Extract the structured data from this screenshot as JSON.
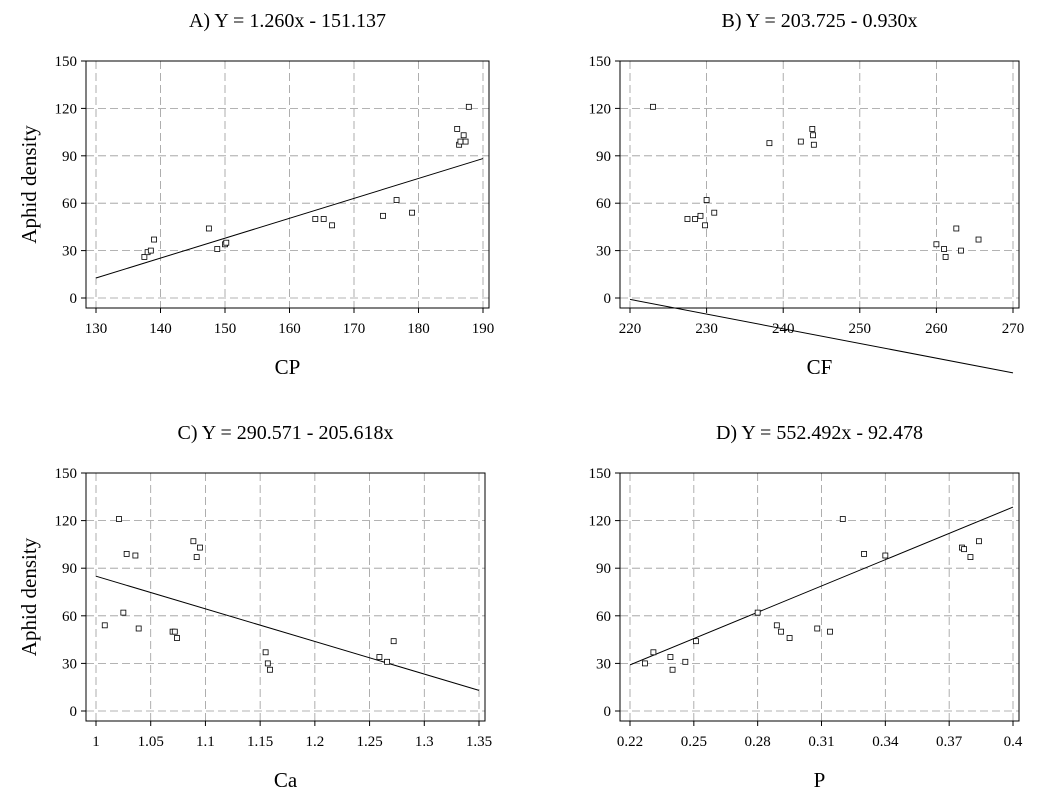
{
  "chart_data": [
    {
      "type": "scatter",
      "panel": "A",
      "title": "A) Y = 1.260x - 151.137",
      "xlabel": "CP",
      "ylabel": "Aphid density",
      "xlim": [
        130,
        190
      ],
      "ylim": [
        0,
        150
      ],
      "xticks": [
        130,
        140,
        150,
        160,
        170,
        180,
        190
      ],
      "xtick_labels": [
        "130",
        "140",
        "150",
        "160",
        "170",
        "180",
        "190"
      ],
      "yticks": [
        0,
        30,
        60,
        90,
        120,
        150
      ],
      "ytick_labels": [
        "0",
        "30",
        "60",
        "90",
        "120",
        "150"
      ],
      "grid": true,
      "points": [
        {
          "x": 137.5,
          "y": 26
        },
        {
          "x": 138.0,
          "y": 29
        },
        {
          "x": 138.5,
          "y": 30
        },
        {
          "x": 139.0,
          "y": 37
        },
        {
          "x": 147.5,
          "y": 44
        },
        {
          "x": 148.8,
          "y": 31
        },
        {
          "x": 150.0,
          "y": 34
        },
        {
          "x": 150.2,
          "y": 35
        },
        {
          "x": 164.0,
          "y": 50
        },
        {
          "x": 165.3,
          "y": 50
        },
        {
          "x": 166.6,
          "y": 46
        },
        {
          "x": 174.5,
          "y": 52
        },
        {
          "x": 176.6,
          "y": 62
        },
        {
          "x": 179.0,
          "y": 54
        },
        {
          "x": 186.0,
          "y": 107
        },
        {
          "x": 186.3,
          "y": 97
        },
        {
          "x": 186.5,
          "y": 99
        },
        {
          "x": 187.0,
          "y": 103
        },
        {
          "x": 187.3,
          "y": 99
        },
        {
          "x": 187.8,
          "y": 121
        }
      ],
      "fit": {
        "slope": 1.26,
        "intercept": -151.137,
        "x_range": [
          130,
          190
        ]
      }
    },
    {
      "type": "scatter",
      "panel": "B",
      "title": "B) Y = 203.725 - 0.930x",
      "xlabel": "CF",
      "ylabel": "",
      "xlim": [
        220,
        270
      ],
      "ylim": [
        0,
        150
      ],
      "xticks": [
        220,
        230,
        240,
        250,
        260,
        270
      ],
      "xtick_labels": [
        "220",
        "230",
        "240",
        "250",
        "260",
        "270"
      ],
      "yticks": [
        0,
        30,
        60,
        90,
        120,
        150
      ],
      "ytick_labels": [
        "0",
        "30",
        "60",
        "90",
        "120",
        "150"
      ],
      "grid": true,
      "points": [
        {
          "x": 223.0,
          "y": 121
        },
        {
          "x": 227.5,
          "y": 50
        },
        {
          "x": 228.5,
          "y": 50
        },
        {
          "x": 229.2,
          "y": 52
        },
        {
          "x": 229.8,
          "y": 46
        },
        {
          "x": 230.0,
          "y": 62
        },
        {
          "x": 231.0,
          "y": 54
        },
        {
          "x": 238.2,
          "y": 98
        },
        {
          "x": 242.3,
          "y": 99
        },
        {
          "x": 243.8,
          "y": 107
        },
        {
          "x": 243.9,
          "y": 103
        },
        {
          "x": 244.0,
          "y": 97
        },
        {
          "x": 260.0,
          "y": 34
        },
        {
          "x": 261.0,
          "y": 31
        },
        {
          "x": 261.2,
          "y": 26
        },
        {
          "x": 262.6,
          "y": 44
        },
        {
          "x": 263.2,
          "y": 30
        },
        {
          "x": 265.5,
          "y": 37
        }
      ],
      "fit": {
        "slope": -0.93,
        "intercept": 203.725,
        "x_range": [
          220,
          270
        ]
      }
    },
    {
      "type": "scatter",
      "panel": "C",
      "title": "C) Y = 290.571 - 205.618x",
      "xlabel": "Ca",
      "ylabel": "Aphid density",
      "xlim": [
        1.0,
        1.35
      ],
      "ylim": [
        0,
        150
      ],
      "xticks": [
        1.0,
        1.05,
        1.1,
        1.15,
        1.2,
        1.25,
        1.3,
        1.35
      ],
      "xtick_labels": [
        "1",
        "1.05",
        "1.1",
        "1.15",
        "1.2",
        "1.25",
        "1.3",
        "1.35"
      ],
      "yticks": [
        0,
        30,
        60,
        90,
        120,
        150
      ],
      "ytick_labels": [
        "0",
        "30",
        "60",
        "90",
        "120",
        "150"
      ],
      "grid": true,
      "points": [
        {
          "x": 1.008,
          "y": 54
        },
        {
          "x": 1.021,
          "y": 121
        },
        {
          "x": 1.025,
          "y": 62
        },
        {
          "x": 1.028,
          "y": 99
        },
        {
          "x": 1.036,
          "y": 98
        },
        {
          "x": 1.039,
          "y": 52
        },
        {
          "x": 1.07,
          "y": 50
        },
        {
          "x": 1.072,
          "y": 50
        },
        {
          "x": 1.074,
          "y": 46
        },
        {
          "x": 1.089,
          "y": 107
        },
        {
          "x": 1.092,
          "y": 97
        },
        {
          "x": 1.095,
          "y": 103
        },
        {
          "x": 1.155,
          "y": 37
        },
        {
          "x": 1.157,
          "y": 30
        },
        {
          "x": 1.159,
          "y": 26
        },
        {
          "x": 1.259,
          "y": 34
        },
        {
          "x": 1.266,
          "y": 31
        },
        {
          "x": 1.272,
          "y": 44
        }
      ],
      "fit": {
        "slope": -205.618,
        "intercept": 290.571,
        "x_range": [
          1.0,
          1.35
        ]
      }
    },
    {
      "type": "scatter",
      "panel": "D",
      "title": "D) Y = 552.492x - 92.478",
      "xlabel": "P",
      "ylabel": "",
      "xlim": [
        0.22,
        0.4
      ],
      "ylim": [
        0,
        150
      ],
      "xticks": [
        0.22,
        0.25,
        0.28,
        0.31,
        0.34,
        0.37,
        0.4
      ],
      "xtick_labels": [
        "0.22",
        "0.25",
        "0.28",
        "0.31",
        "0.34",
        "0.37",
        "0.4"
      ],
      "yticks": [
        0,
        30,
        60,
        90,
        120,
        150
      ],
      "ytick_labels": [
        "0",
        "30",
        "60",
        "90",
        "120",
        "150"
      ],
      "grid": true,
      "points": [
        {
          "x": 0.227,
          "y": 30
        },
        {
          "x": 0.231,
          "y": 37
        },
        {
          "x": 0.239,
          "y": 34
        },
        {
          "x": 0.24,
          "y": 26
        },
        {
          "x": 0.246,
          "y": 31
        },
        {
          "x": 0.251,
          "y": 44
        },
        {
          "x": 0.28,
          "y": 62
        },
        {
          "x": 0.289,
          "y": 54
        },
        {
          "x": 0.291,
          "y": 50
        },
        {
          "x": 0.295,
          "y": 46
        },
        {
          "x": 0.308,
          "y": 52
        },
        {
          "x": 0.314,
          "y": 50
        },
        {
          "x": 0.32,
          "y": 121
        },
        {
          "x": 0.33,
          "y": 99
        },
        {
          "x": 0.34,
          "y": 98
        },
        {
          "x": 0.376,
          "y": 103
        },
        {
          "x": 0.377,
          "y": 102
        },
        {
          "x": 0.38,
          "y": 97
        },
        {
          "x": 0.384,
          "y": 107
        }
      ],
      "fit": {
        "slope": 552.492,
        "intercept": -92.478,
        "x_range": [
          0.22,
          0.4
        ]
      }
    }
  ]
}
